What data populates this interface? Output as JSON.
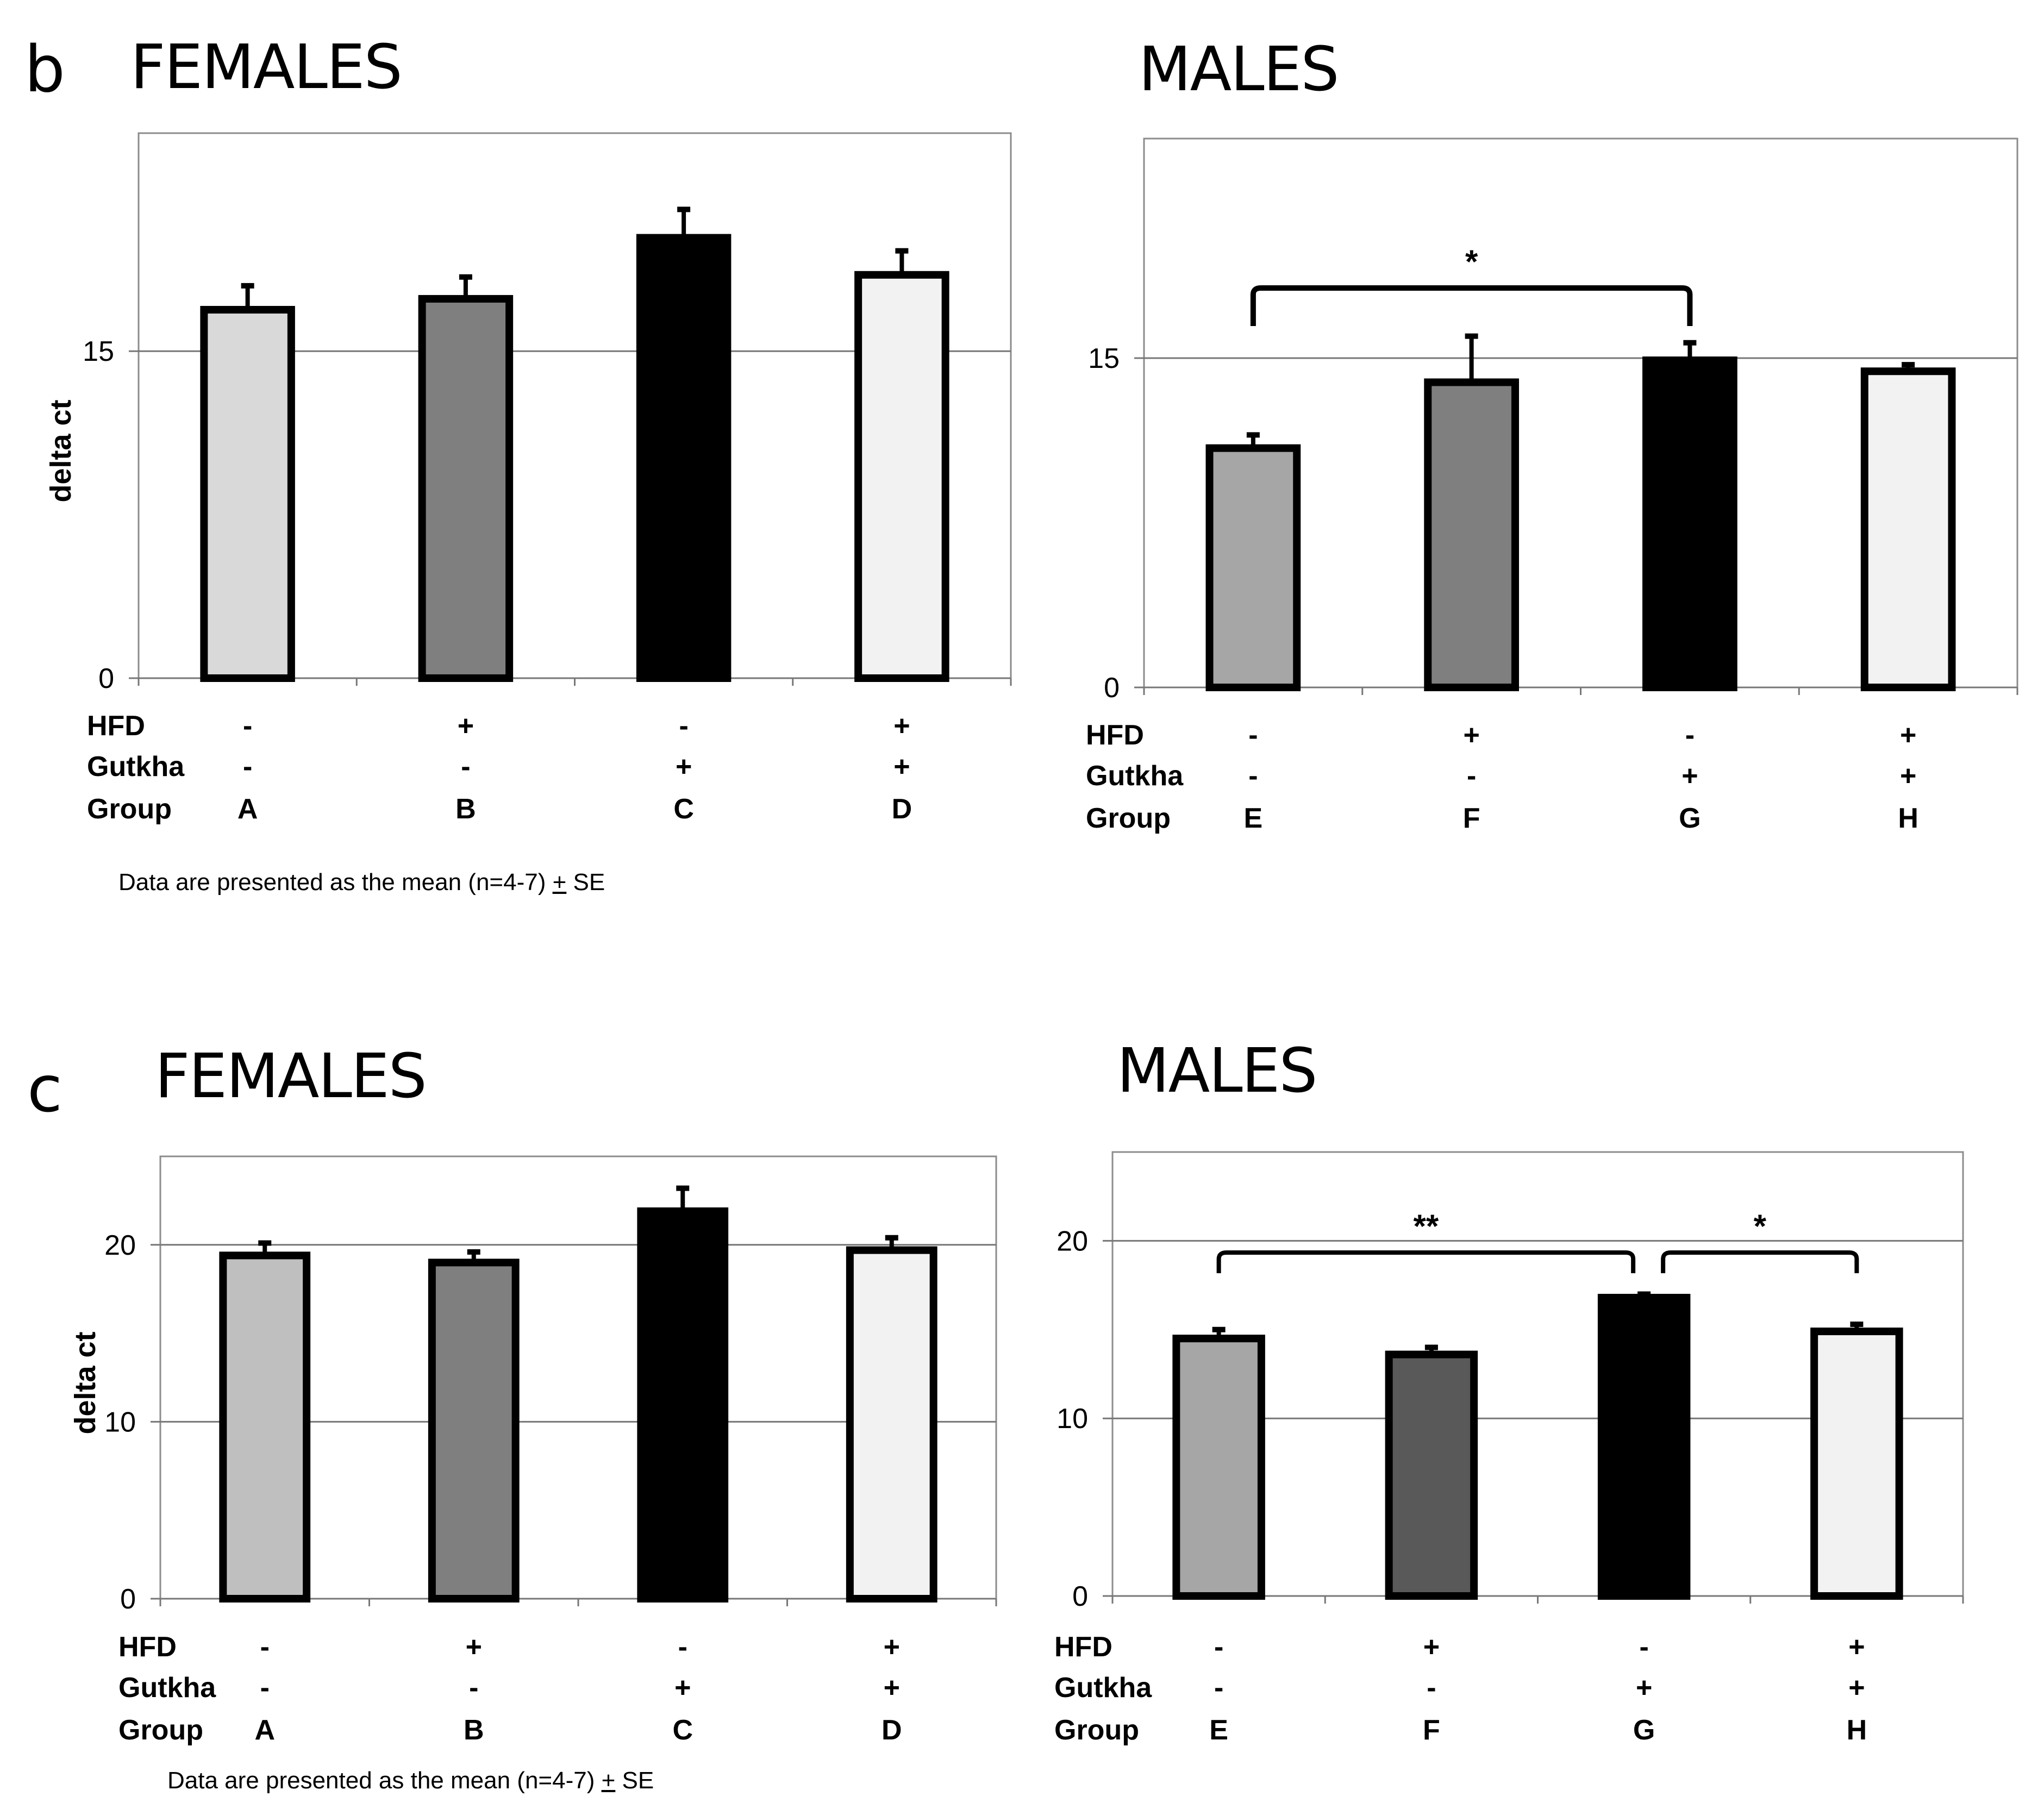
{
  "panels": {
    "b": "b",
    "c": "c"
  },
  "notes": {
    "b": {
      "prefix": "Data are presented as the mean (n=4-7) ",
      "pm": "+",
      "suffix": " SE"
    },
    "c": {
      "prefix": "Data are presented as the mean (n=4-7) ",
      "pm": "+",
      "suffix": " SE"
    }
  },
  "row_labels": [
    "HFD",
    "Gutkha",
    "Group"
  ],
  "chart_data": [
    {
      "id": "b-females",
      "type": "bar",
      "title": "FEMALES",
      "ylabel": "delta ct",
      "ylim": [
        0,
        25
      ],
      "yticks": [
        0,
        15
      ],
      "gridlines": [
        15
      ],
      "categories": [
        "A",
        "B",
        "C",
        "D"
      ],
      "hfd": [
        "-",
        "+",
        "-",
        "+"
      ],
      "gutkha": [
        "-",
        "-",
        "+",
        "+"
      ],
      "values": [
        16.9,
        17.4,
        20.2,
        18.5
      ],
      "errors": [
        1.1,
        1.0,
        1.3,
        1.1
      ],
      "colors": [
        "#d9d9d9",
        "#7f7f7f",
        "#000000",
        "#f2f2f2"
      ],
      "significance": []
    },
    {
      "id": "b-males",
      "type": "bar",
      "title": "MALES",
      "ylabel": "",
      "ylim": [
        0,
        25
      ],
      "yticks": [
        0,
        15
      ],
      "gridlines": [
        15
      ],
      "categories": [
        "E",
        "F",
        "G",
        "H"
      ],
      "hfd": [
        "-",
        "+",
        "-",
        "+"
      ],
      "gutkha": [
        "-",
        "-",
        "+",
        "+"
      ],
      "values": [
        10.9,
        13.9,
        14.9,
        14.4
      ],
      "errors": [
        0.6,
        2.1,
        0.8,
        0.3
      ],
      "colors": [
        "#a6a6a6",
        "#7f7f7f",
        "#000000",
        "#f2f2f2"
      ],
      "significance": [
        {
          "from": 0,
          "to": 2,
          "label": "*"
        }
      ]
    },
    {
      "id": "c-females",
      "type": "bar",
      "title": "FEMALES",
      "ylabel": "delta ct",
      "ylim": [
        0,
        25
      ],
      "yticks": [
        0,
        10,
        20
      ],
      "gridlines": [
        10,
        20
      ],
      "categories": [
        "A",
        "B",
        "C",
        "D"
      ],
      "hfd": [
        "-",
        "+",
        "-",
        "+"
      ],
      "gutkha": [
        "-",
        "-",
        "+",
        "+"
      ],
      "values": [
        19.4,
        19.0,
        21.9,
        19.7
      ],
      "errors": [
        0.7,
        0.6,
        1.3,
        0.7
      ],
      "colors": [
        "#bfbfbf",
        "#7f7f7f",
        "#000000",
        "#f2f2f2"
      ],
      "significance": []
    },
    {
      "id": "c-males",
      "type": "bar",
      "title": "MALES",
      "ylabel": "",
      "ylim": [
        0,
        25
      ],
      "yticks": [
        0,
        10,
        20
      ],
      "gridlines": [
        10,
        20
      ],
      "categories": [
        "E",
        "F",
        "G",
        "H"
      ],
      "hfd": [
        "-",
        "+",
        "-",
        "+"
      ],
      "gutkha": [
        "-",
        "-",
        "+",
        "+"
      ],
      "values": [
        14.5,
        13.6,
        16.8,
        14.9
      ],
      "errors": [
        0.5,
        0.4,
        0.2,
        0.4
      ],
      "colors": [
        "#a6a6a6",
        "#595959",
        "#000000",
        "#f2f2f2"
      ],
      "significance": [
        {
          "from": 0,
          "to": 2,
          "label": "**"
        },
        {
          "from": 2,
          "to": 3,
          "label": "*"
        }
      ]
    }
  ]
}
